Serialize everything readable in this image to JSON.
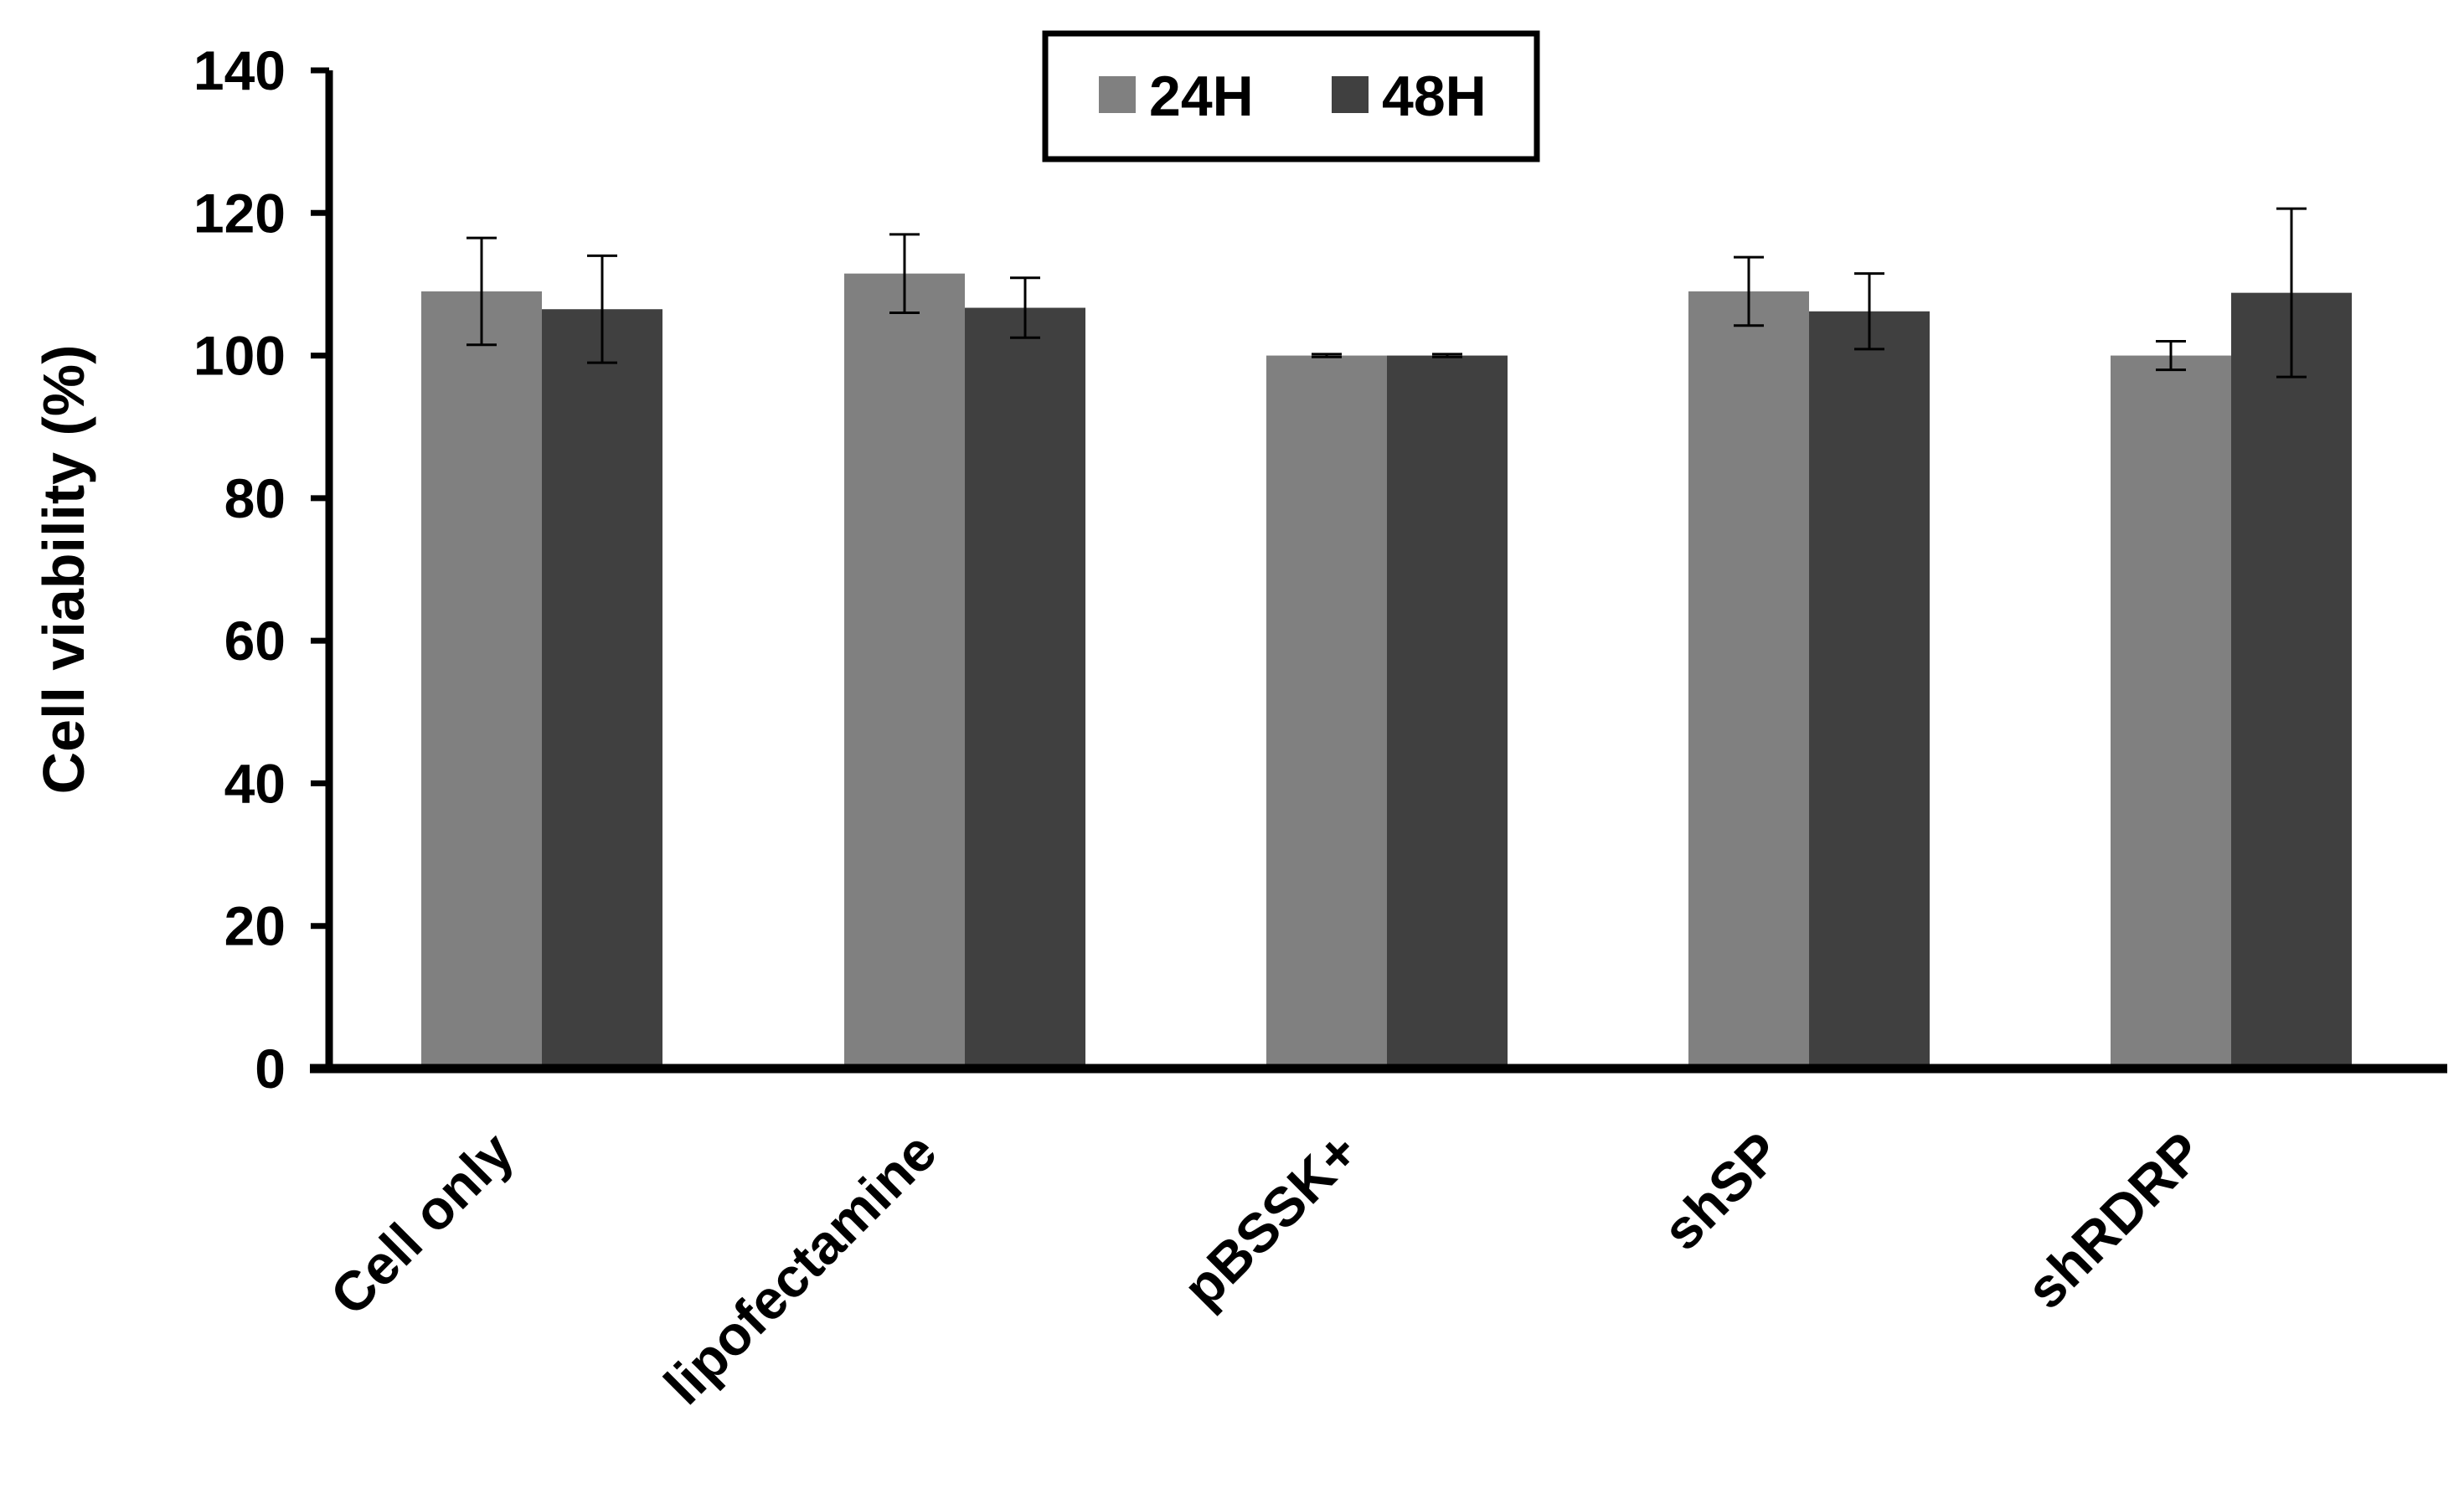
{
  "chart_data": {
    "type": "bar",
    "title": "",
    "xlabel": "",
    "ylabel": "Cell viability (%)",
    "categories": [
      "Cell only",
      "lipofectamine",
      "pBSSK+",
      "shSP",
      "shRDRP"
    ],
    "series": [
      {
        "name": "24H",
        "color": "#808080",
        "values": [
          109,
          111.5,
          100,
          109,
          100
        ],
        "errors": [
          7.5,
          5.5,
          0.2,
          4.8,
          2
        ]
      },
      {
        "name": "48H",
        "color": "#404040",
        "values": [
          106.5,
          106.7,
          100,
          106.2,
          108.8
        ],
        "errors": [
          7.5,
          4.2,
          0.2,
          5.3,
          11.8
        ]
      }
    ],
    "ylim": [
      0,
      140
    ],
    "yticks": [
      0,
      20,
      40,
      60,
      80,
      100,
      120,
      140
    ],
    "grid": false,
    "legend": "top-center"
  }
}
